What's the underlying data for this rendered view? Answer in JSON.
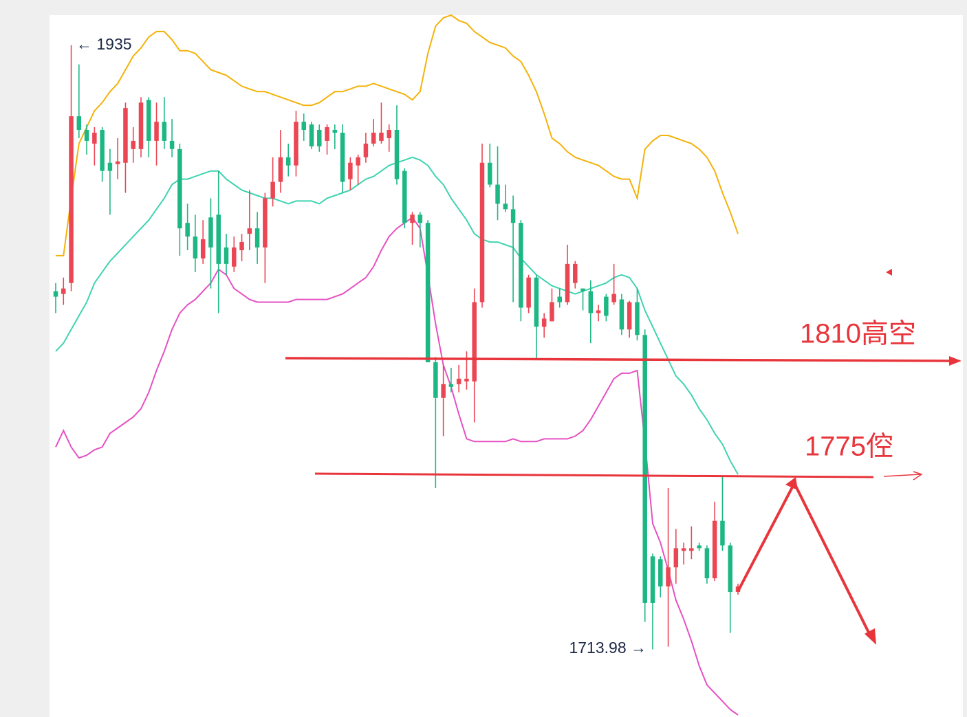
{
  "chart_data": {
    "type": "candlestick",
    "up_color": "#ea4653",
    "down_color": "#1db784",
    "ylim": [
      1690,
      1946
    ],
    "open": [
      1845,
      1844,
      1848,
      1909,
      1904,
      1899,
      1904,
      1892,
      1891.5,
      1892,
      1897,
      1897,
      1915,
      1900,
      1907,
      1900,
      1897,
      1870,
      1865,
      1857,
      1872,
      1873,
      1861,
      1854,
      1860,
      1866,
      1868,
      1861,
      1879,
      1885,
      1894,
      1891,
      1907,
      1906,
      1904,
      1900,
      1904,
      1903,
      1886,
      1891,
      1894,
      1899,
      1900,
      1901,
      1904,
      1889,
      1870,
      1873,
      1870,
      1819,
      1806,
      1811,
      1811,
      1812,
      1812,
      1841,
      1892,
      1884,
      1877,
      1875,
      1870,
      1839,
      1850,
      1832,
      1834,
      1843,
      1841,
      1848,
      1846,
      1845,
      1837,
      1843,
      1841,
      1842,
      1831,
      1841,
      1829,
      1748,
      1747,
      1737,
      1744,
      1750,
      1750,
      1752,
      1751,
      1740,
      1761,
      1752,
      1735
    ],
    "high": [
      1848,
      1850,
      1935,
      1928,
      1906,
      1905,
      1905,
      1897,
      1901,
      1914,
      1905,
      1916,
      1916,
      1914,
      1916,
      1908,
      1899,
      1877,
      1873,
      1871,
      1879,
      1889,
      1866,
      1865,
      1866,
      1882,
      1874,
      1881,
      1894,
      1904,
      1899,
      1911,
      1910,
      1907,
      1906,
      1906,
      1906,
      1906,
      1894,
      1895,
      1903,
      1908,
      1914,
      1906,
      1913,
      1890,
      1874,
      1874,
      1871,
      1821,
      1818,
      1817,
      1818,
      1823,
      1846,
      1899,
      1899,
      1898,
      1884,
      1880,
      1871,
      1851,
      1851,
      1837,
      1846,
      1846,
      1862,
      1856,
      1846,
      1849,
      1840,
      1844,
      1855,
      1844,
      1841.5,
      1846,
      1831,
      1749,
      1748,
      1773,
      1758,
      1753,
      1759,
      1753,
      1752,
      1768,
      1777,
      1753,
      1738
    ],
    "low": [
      1837,
      1840,
      1845,
      1901,
      1895,
      1891,
      1885,
      1873,
      1886,
      1881,
      1892,
      1894,
      1894,
      1891,
      1897,
      1894,
      1858,
      1860,
      1852,
      1855,
      1846,
      1837,
      1851,
      1852,
      1856,
      1860,
      1855,
      1848,
      1876,
      1881,
      1887,
      1887,
      1900,
      1897,
      1896,
      1895,
      1897,
      1881,
      1882,
      1884,
      1892,
      1898,
      1899,
      1896,
      1884,
      1868,
      1862,
      1861,
      1819,
      1773,
      1792,
      1808,
      1808,
      1809,
      1797,
      1839,
      1883,
      1871,
      1874,
      1841,
      1834,
      1837,
      1820,
      1828,
      1834,
      1839,
      1840,
      1846,
      1838,
      1826,
      1834,
      1834,
      1840,
      1829,
      1828,
      1827,
      1724,
      1713.98,
      1733,
      1715,
      1738,
      1745,
      1747,
      1750,
      1738,
      1739,
      1750,
      1720,
      1734
    ],
    "close": [
      1843,
      1846,
      1909,
      1904,
      1900,
      1903,
      1889,
      1889,
      1892.5,
      1912,
      1900,
      1914,
      1900,
      1907,
      1900,
      1897,
      1868,
      1865,
      1857,
      1864,
      1861,
      1855,
      1855,
      1861,
      1863,
      1868,
      1861,
      1879,
      1885,
      1894,
      1891,
      1907,
      1904,
      1898,
      1898,
      1905,
      1903,
      1885,
      1892,
      1894,
      1899,
      1903,
      1903,
      1904,
      1886,
      1870,
      1873,
      1870,
      1819,
      1806,
      1811,
      1810,
      1813,
      1813,
      1841,
      1892,
      1884,
      1877,
      1875,
      1870,
      1839,
      1850,
      1832,
      1835,
      1841,
      1841,
      1855,
      1855,
      1845,
      1837,
      1838,
      1836,
      1844,
      1831,
      1841,
      1829,
      1731,
      1731,
      1737,
      1744,
      1751,
      1751,
      1751,
      1751,
      1740,
      1761,
      1752,
      1735,
      1737
    ],
    "overlays": [
      {
        "color": "#f4b20a",
        "values": [
          1858,
          1858,
          1879,
          1899,
          1905,
          1911,
          1914,
          1918,
          1921,
          1926,
          1931,
          1934,
          1938,
          1940,
          1940,
          1937,
          1933,
          1933,
          1932,
          1929,
          1926,
          1925,
          1924,
          1922,
          1920,
          1919,
          1918,
          1918,
          1917,
          1916,
          1915,
          1914,
          1913,
          1913,
          1914,
          1916,
          1918,
          1918,
          1919,
          1920,
          1920,
          1921,
          1920,
          1919,
          1918,
          1917,
          1915,
          1918,
          1932,
          1942,
          1945,
          1946,
          1944,
          1943,
          1940,
          1938,
          1936,
          1935,
          1934,
          1931,
          1929,
          1924,
          1918,
          1910,
          1901,
          1899,
          1896,
          1894,
          1893,
          1892,
          1891,
          1889,
          1887,
          1886,
          1886,
          1879,
          1897,
          1900,
          1902,
          1902,
          1901,
          1900,
          1899,
          1897,
          1894,
          1889,
          1881,
          1874,
          1866
        ]
      },
      {
        "color": "#3fd3b1",
        "values": [
          1823,
          1826,
          1831,
          1836,
          1841,
          1848,
          1852,
          1856,
          1859,
          1862,
          1865,
          1868,
          1871,
          1875,
          1879,
          1884,
          1886,
          1886,
          1887,
          1888,
          1889,
          1889,
          1886,
          1884,
          1882,
          1881,
          1880,
          1879,
          1879,
          1878,
          1877,
          1878,
          1878,
          1878,
          1877,
          1879,
          1880,
          1881,
          1882,
          1884,
          1886,
          1887,
          1889,
          1891,
          1892,
          1893,
          1894,
          1893,
          1891,
          1887,
          1884,
          1879,
          1875,
          1871,
          1866,
          1864,
          1863,
          1863,
          1862,
          1861,
          1857,
          1854,
          1851,
          1849,
          1847,
          1846,
          1845,
          1844,
          1845,
          1846,
          1847,
          1848,
          1850,
          1851,
          1850,
          1846,
          1838,
          1832,
          1826,
          1820,
          1814,
          1811,
          1807,
          1802,
          1798,
          1793,
          1789,
          1783,
          1778
        ]
      },
      {
        "color": "#e650c3",
        "values": [
          1788,
          1794,
          1788,
          1784,
          1785,
          1787,
          1788,
          1793,
          1795,
          1797,
          1799,
          1802,
          1808,
          1816,
          1823,
          1831,
          1837,
          1840,
          1842,
          1845,
          1848,
          1853,
          1851,
          1846,
          1844,
          1842,
          1841,
          1841,
          1841,
          1841,
          1841,
          1842,
          1842,
          1842,
          1842,
          1842,
          1843,
          1844,
          1846,
          1848,
          1850,
          1854,
          1860,
          1865,
          1868,
          1870,
          1872,
          1868,
          1851,
          1833,
          1818,
          1810,
          1800,
          1791,
          1790,
          1790,
          1790,
          1790,
          1790,
          1791,
          1790,
          1790,
          1790,
          1791,
          1791,
          1791,
          1791,
          1792,
          1794,
          1798,
          1803,
          1808,
          1813,
          1815,
          1815,
          1816,
          1790,
          1760,
          1753,
          1743,
          1732,
          1725,
          1717,
          1708,
          1701,
          1698,
          1695,
          1692,
          1690
        ]
      }
    ],
    "high_label": "← 1935",
    "low_label": "1713.98 →",
    "annotations": [
      "1810高空",
      "1775倥"
    ]
  }
}
